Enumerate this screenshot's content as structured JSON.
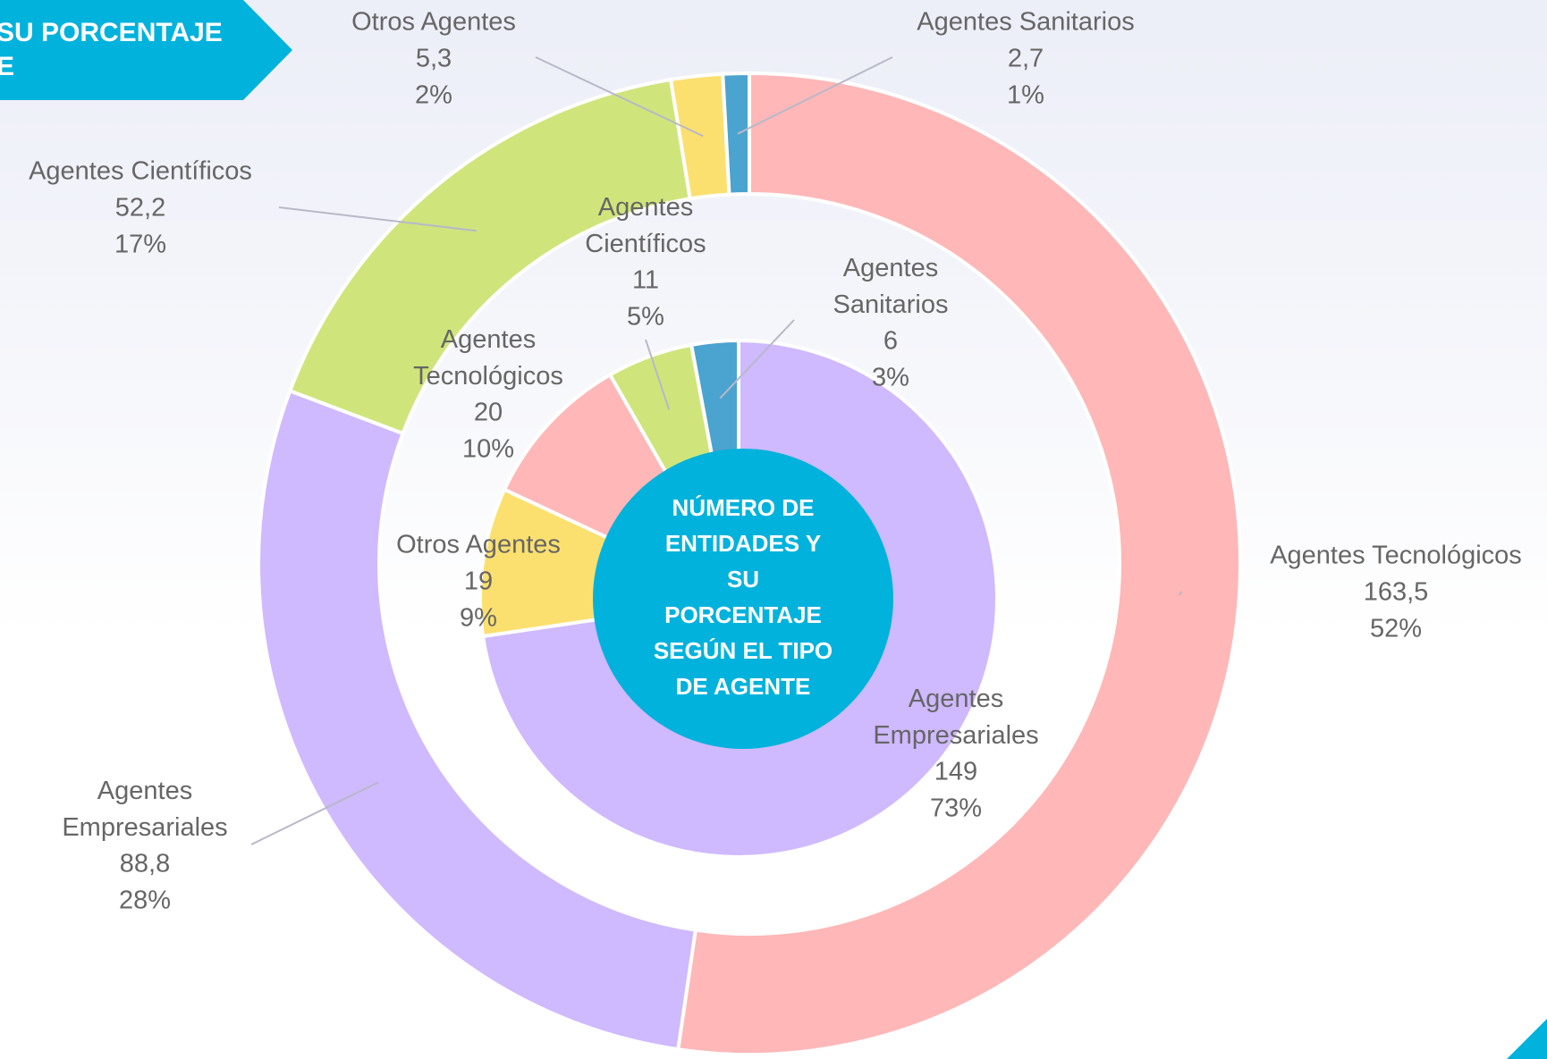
{
  "banner_lines": [
    "SU PORCENTAJE",
    "E"
  ],
  "center_title": [
    "NÚMERO DE",
    "ENTIDADES Y",
    "SU",
    "PORCENTAJE",
    "SEGÚN EL TIPO",
    "DE AGENTE"
  ],
  "chart_data": [
    {
      "type": "donut",
      "categories": [
        "Agentes Tecnológicos",
        "Agentes Empresariales",
        "Agentes Científicos",
        "Otros Agentes",
        "Agentes Sanitarios"
      ],
      "values": [
        163.5,
        88.8,
        52.2,
        5.3,
        2.7
      ],
      "value_labels": [
        "163,5",
        "88,8",
        "52,2",
        "5,3",
        "2,7"
      ],
      "percentages": [
        52,
        28,
        17,
        2,
        1
      ],
      "percentage_labels": [
        "52%",
        "28%",
        "17%",
        "2%",
        "1%"
      ],
      "colors": [
        "#ffb7b7",
        "#cfb9ff",
        "#cfe57b",
        "#fbe070",
        "#4ba3cf"
      ]
    },
    {
      "type": "pie",
      "categories": [
        "Agentes Empresariales",
        "Otros Agentes",
        "Agentes Tecnológicos",
        "Agentes Científicos",
        "Agentes Sanitarios"
      ],
      "values": [
        149,
        19,
        20,
        11,
        6
      ],
      "percentages": [
        73,
        9,
        10,
        5,
        3
      ],
      "percentage_labels": [
        "73%",
        "9%",
        "10%",
        "5%",
        "3%"
      ],
      "colors": [
        "#cfb9ff",
        "#fbe070",
        "#ffb7b7",
        "#cfe57b",
        "#4ba3cf"
      ]
    }
  ]
}
